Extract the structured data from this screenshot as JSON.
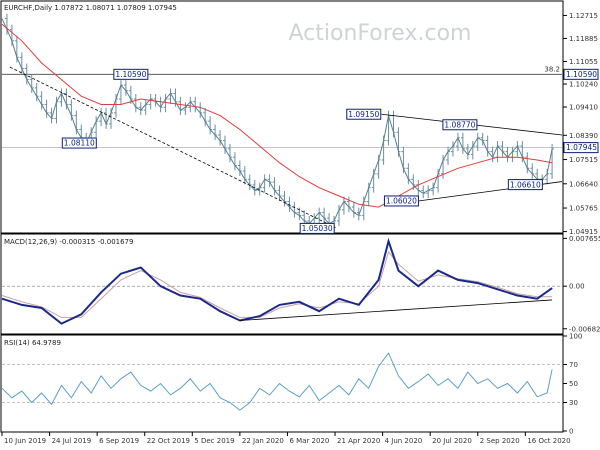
{
  "chart_data": [
    {
      "type": "candlestick",
      "title": "EURCHF,Daily  1.07872 1.08071 1.07809 1.07945",
      "watermark": "ActionForex.com",
      "ylim": [
        1.049,
        1.132
      ],
      "yticks": [
        "1.12715",
        "1.11885",
        "1.11055",
        "1.10240",
        "1.09410",
        "1.08390",
        "1.07515",
        "1.06640",
        "1.05765",
        "1.04915"
      ],
      "ytick_values": [
        1.12715,
        1.11885,
        1.11055,
        1.1024,
        1.0941,
        1.0839,
        1.07515,
        1.0664,
        1.05765,
        1.04915
      ],
      "fib_label": "38.2",
      "fib_level": 1.1059,
      "current_price": "1.07945",
      "current_value": 1.07945,
      "level_label": "1.10590",
      "price_series": {
        "x": [
          0,
          5,
          10,
          15,
          20,
          25,
          30,
          35,
          40,
          45,
          50,
          55,
          60,
          65,
          70,
          75,
          80,
          85,
          90,
          95,
          100,
          105,
          110,
          115,
          120,
          125,
          130,
          135,
          140,
          145,
          150,
          155,
          160,
          165,
          170,
          175,
          180,
          185,
          190,
          195,
          200,
          205,
          210,
          215,
          220,
          225,
          230,
          235,
          240,
          245,
          250,
          255,
          260,
          265,
          270,
          275,
          280,
          285,
          290,
          295,
          300,
          305,
          310,
          315,
          320,
          325,
          330,
          335,
          340,
          345,
          350,
          355,
          360,
          365,
          370,
          375,
          380,
          385,
          390,
          395,
          400,
          405,
          410,
          415,
          420,
          425,
          430,
          435,
          440,
          445,
          450,
          455,
          460,
          465,
          470,
          475,
          480,
          485,
          490,
          495,
          500,
          505,
          510,
          515,
          520,
          525,
          530,
          535,
          540,
          545,
          550,
          555
        ],
        "y": [
          1.126,
          1.122,
          1.118,
          1.112,
          1.108,
          1.104,
          1.101,
          1.098,
          1.095,
          1.092,
          1.09,
          1.096,
          1.099,
          1.095,
          1.091,
          1.086,
          1.083,
          1.081,
          1.085,
          1.089,
          1.092,
          1.088,
          1.092,
          1.097,
          1.102,
          1.1,
          1.097,
          1.094,
          1.093,
          1.095,
          1.097,
          1.096,
          1.094,
          1.097,
          1.099,
          1.096,
          1.093,
          1.094,
          1.096,
          1.094,
          1.092,
          1.089,
          1.086,
          1.084,
          1.082,
          1.079,
          1.076,
          1.073,
          1.071,
          1.068,
          1.066,
          1.064,
          1.065,
          1.068,
          1.067,
          1.064,
          1.062,
          1.06,
          1.058,
          1.056,
          1.055,
          1.053,
          1.052,
          1.054,
          1.056,
          1.054,
          1.052,
          1.053,
          1.057,
          1.06,
          1.058,
          1.056,
          1.055,
          1.06,
          1.065,
          1.07,
          1.075,
          1.082,
          1.091,
          1.085,
          1.078,
          1.072,
          1.068,
          1.066,
          1.064,
          1.063,
          1.064,
          1.065,
          1.07,
          1.075,
          1.078,
          1.08,
          1.083,
          1.079,
          1.077,
          1.08,
          1.083,
          1.082,
          1.078,
          1.076,
          1.08,
          1.078,
          1.076,
          1.078,
          1.08,
          1.076,
          1.072,
          1.07,
          1.068,
          1.068,
          1.07,
          1.079
        ]
      },
      "ma_series": {
        "x": [
          0,
          20,
          40,
          60,
          80,
          100,
          120,
          140,
          160,
          180,
          200,
          220,
          240,
          260,
          280,
          300,
          320,
          340,
          360,
          380,
          400,
          420,
          440,
          460,
          480,
          500,
          520,
          540,
          555
        ],
        "y": [
          1.124,
          1.118,
          1.11,
          1.104,
          1.098,
          1.095,
          1.095,
          1.097,
          1.096,
          1.095,
          1.094,
          1.091,
          1.086,
          1.08,
          1.074,
          1.069,
          1.065,
          1.062,
          1.059,
          1.058,
          1.062,
          1.066,
          1.069,
          1.072,
          1.074,
          1.076,
          1.076,
          1.075,
          1.074
        ]
      },
      "lines": [
        {
          "x": [
            8,
            338
          ],
          "y": [
            1.1085,
            1.0503
          ]
        },
        {
          "x": [
            383,
            565
          ],
          "y": [
            1.0915,
            1.084
          ]
        },
        {
          "x": [
            420,
            565
          ],
          "y": [
            1.0602,
            1.0672
          ]
        }
      ],
      "annotations": [
        {
          "label": "1.10590",
          "x": 130,
          "y": 1.1059
        },
        {
          "label": "1.08110",
          "x": 78,
          "y": 1.0811
        },
        {
          "label": "1.09150",
          "x": 365,
          "y": 1.0915
        },
        {
          "label": "1.08770",
          "x": 462,
          "y": 1.0877
        },
        {
          "label": "1.06020",
          "x": 403,
          "y": 1.0602
        },
        {
          "label": "1.06610",
          "x": 528,
          "y": 1.0661
        },
        {
          "label": "1.05030",
          "x": 318,
          "y": 1.0503
        }
      ]
    },
    {
      "type": "line",
      "title": "MACD(12,26,9) -0.000315 -0.001679",
      "ylim": [
        -0.0075,
        0.0082
      ],
      "yticks": [
        "0.007655",
        "0.00",
        "-0.006822"
      ],
      "ytick_values": [
        0.007655,
        0.0,
        -0.006822
      ],
      "macd": {
        "x": [
          0,
          20,
          40,
          60,
          80,
          100,
          120,
          140,
          160,
          180,
          200,
          220,
          240,
          260,
          280,
          300,
          320,
          340,
          360,
          380,
          390,
          400,
          420,
          440,
          460,
          480,
          500,
          520,
          540,
          555
        ],
        "y": [
          -0.002,
          -0.003,
          -0.0035,
          -0.006,
          -0.0045,
          -0.001,
          0.002,
          0.003,
          0.0,
          -0.0015,
          -0.002,
          -0.004,
          -0.0055,
          -0.0048,
          -0.003,
          -0.0025,
          -0.004,
          -0.002,
          -0.003,
          0.001,
          0.0072,
          0.0025,
          0.0,
          0.0025,
          0.001,
          0.0005,
          -0.0005,
          -0.0015,
          -0.002,
          -0.0003
        ]
      },
      "signal": {
        "x": [
          0,
          20,
          40,
          60,
          80,
          100,
          120,
          140,
          160,
          180,
          200,
          220,
          240,
          260,
          280,
          300,
          320,
          340,
          360,
          380,
          390,
          400,
          420,
          440,
          460,
          480,
          500,
          520,
          540,
          555
        ],
        "y": [
          -0.0015,
          -0.0025,
          -0.0033,
          -0.005,
          -0.005,
          -0.002,
          0.001,
          0.0025,
          0.001,
          -0.001,
          -0.0018,
          -0.0035,
          -0.005,
          -0.005,
          -0.0035,
          -0.0028,
          -0.0035,
          -0.0025,
          -0.0028,
          0.0,
          0.0055,
          0.0035,
          0.0008,
          0.0018,
          0.0012,
          0.0007,
          -0.0002,
          -0.0012,
          -0.0017,
          -0.0017
        ]
      },
      "trendline": {
        "x": [
          240,
          555
        ],
        "y": [
          -0.0055,
          -0.0022
        ]
      }
    },
    {
      "type": "line",
      "title": "RSI(14) 64.9789",
      "ylim": [
        0,
        100
      ],
      "yticks": [
        "100",
        "70",
        "50",
        "30",
        "0"
      ],
      "ytick_values": [
        100,
        70,
        50,
        30,
        0
      ],
      "levels": [
        70,
        30
      ],
      "rsi": {
        "x": [
          0,
          10,
          20,
          30,
          40,
          50,
          60,
          70,
          80,
          90,
          100,
          110,
          120,
          130,
          140,
          150,
          160,
          170,
          180,
          190,
          200,
          210,
          220,
          230,
          240,
          250,
          260,
          270,
          280,
          290,
          300,
          310,
          320,
          330,
          340,
          350,
          360,
          370,
          380,
          390,
          400,
          410,
          420,
          430,
          440,
          450,
          460,
          470,
          480,
          490,
          500,
          510,
          520,
          530,
          540,
          550,
          555
        ],
        "y": [
          45,
          35,
          42,
          30,
          40,
          28,
          48,
          35,
          52,
          40,
          58,
          45,
          55,
          62,
          48,
          42,
          50,
          38,
          45,
          55,
          42,
          50,
          35,
          30,
          22,
          30,
          45,
          38,
          50,
          42,
          36,
          48,
          32,
          40,
          48,
          38,
          55,
          45,
          68,
          82,
          58,
          45,
          52,
          60,
          48,
          55,
          45,
          62,
          50,
          55,
          45,
          50,
          40,
          52,
          36,
          40,
          65
        ]
      }
    }
  ],
  "x_axis": {
    "labels": [
      "10 Jun 2019",
      "24 Jul 2019",
      "6 Sep 2019",
      "22 Oct 2019",
      "5 Dec 2019",
      "22 Jan 2020",
      "6 Mar 2020",
      "21 Apr 2020",
      "4 Jun 2020",
      "20 Jul 2020",
      "2 Sep 2020",
      "16 Oct 2020"
    ],
    "positions": [
      0,
      48,
      96,
      144,
      192,
      240,
      288,
      336,
      384,
      432,
      480,
      528
    ],
    "range": [
      0,
      565
    ]
  }
}
